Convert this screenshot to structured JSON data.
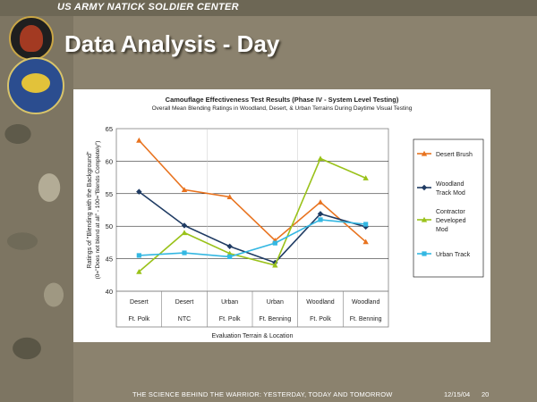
{
  "header": {
    "org": "US ARMY NATICK SOLDIER CENTER",
    "title": "Data Analysis - Day"
  },
  "footer": {
    "tagline": "THE SCIENCE BEHIND THE WARRIOR: YESTERDAY, TODAY AND TOMORROW",
    "date": "12/15/04",
    "page": "20"
  },
  "chart_data": {
    "type": "line",
    "title": "Camouflage Effectiveness Test Results (Phase IV - System Level Testing)",
    "subtitle": "Overall Mean Blending Ratings in Woodland, Desert, & Urban Terrains During Daytime Visual Testing",
    "ylabel": "Ratings of \"Blending with the Background\"",
    "ylabel2": "(0=\"Does not blend at all\" - 100=\"Blends Completely\")",
    "xlabel": "Evaluation Terrain & Location",
    "ylim": [
      40,
      65
    ],
    "yticks": [
      40,
      45,
      50,
      55,
      60,
      65
    ],
    "grid": true,
    "legend_position": "right",
    "categories": [
      {
        "terrain": "Desert",
        "location": "Ft. Polk"
      },
      {
        "terrain": "Desert",
        "location": "NTC"
      },
      {
        "terrain": "Urban",
        "location": "Ft. Polk"
      },
      {
        "terrain": "Urban",
        "location": "Ft. Benning"
      },
      {
        "terrain": "Woodland",
        "location": "Ft. Polk"
      },
      {
        "terrain": "Woodland",
        "location": "Ft. Benning"
      }
    ],
    "series": [
      {
        "name": "Desert Brush",
        "color": "#e8731f",
        "marker": "triangle",
        "values": [
          63.2,
          55.6,
          54.5,
          47.8,
          53.7,
          47.6
        ]
      },
      {
        "name": "Woodland Track Mod",
        "color": "#1f3b63",
        "marker": "diamond",
        "values": [
          55.3,
          50.1,
          46.9,
          44.4,
          51.9,
          49.9
        ]
      },
      {
        "name": "Contractor Developed Mod",
        "color": "#9ac21a",
        "marker": "triangle",
        "values": [
          43.0,
          49.0,
          45.8,
          44.0,
          60.4,
          57.4
        ]
      },
      {
        "name": "Urban Track",
        "color": "#33b7e2",
        "marker": "square",
        "values": [
          45.5,
          45.9,
          45.3,
          47.4,
          51.0,
          50.3
        ]
      }
    ]
  }
}
